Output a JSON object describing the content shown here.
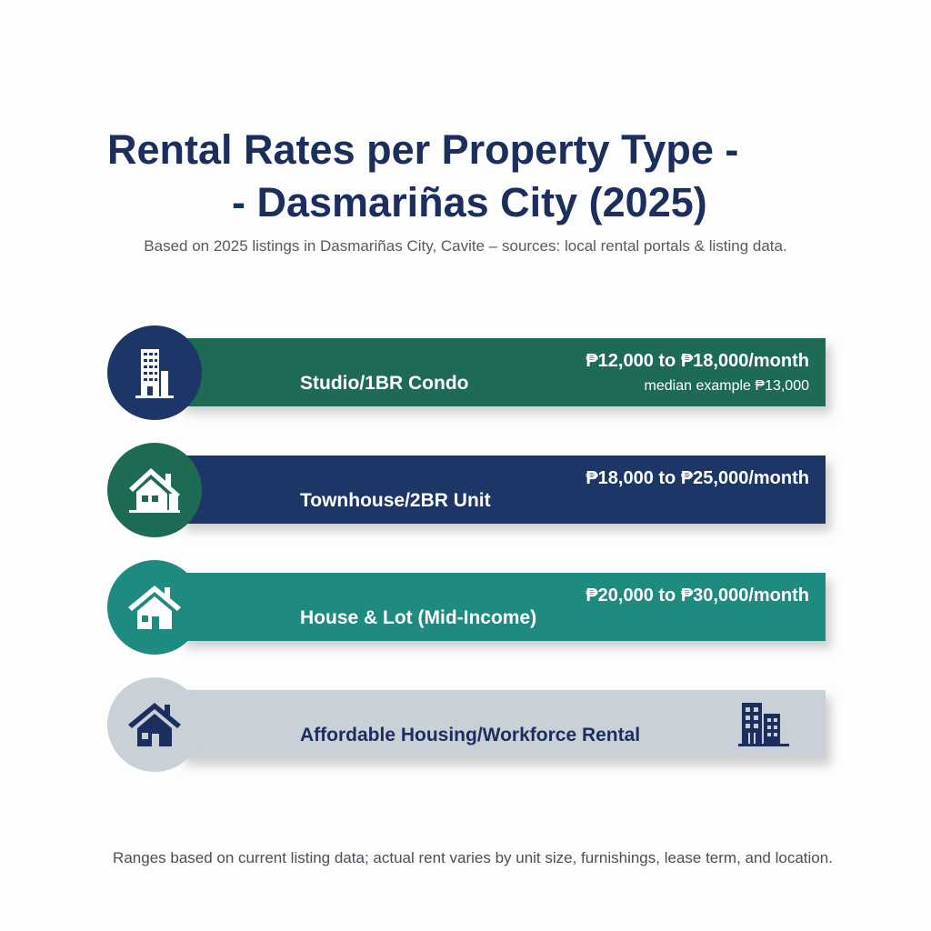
{
  "title": {
    "line1": "Rental Rates per Property Type -",
    "line2": "- Dasmariñas City (2025)"
  },
  "subtitle": "Based on 2025 listings in Dasmariñas City, Cavite – sources: local rental portals & listing data.",
  "rows": [
    {
      "label": "Studio/1BR Condo",
      "price": "₱12,000 to ₱18,000/month",
      "note": "median example ₱13,000",
      "icon": "building-icon",
      "bar_color": "#1e6b55",
      "circle_color": "#1c3668"
    },
    {
      "label": "Townhouse/2BR Unit",
      "price": "₱18,000 to ₱25,000/month",
      "icon": "house-icon",
      "bar_color": "#1c3668",
      "circle_color": "#1e6b55"
    },
    {
      "label": "House & Lot (Mid-Income)",
      "price": "₱20,000 to ₱30,000/month",
      "icon": "house-icon",
      "bar_color": "#1f8a80",
      "circle_color": "#1f8a80"
    },
    {
      "label": "Affordable Housing/Workforce Rental",
      "icon": "house-icon",
      "right_icon": "apartment-building-icon",
      "bar_color": "#c9d0d7",
      "circle_color": "#c9d0d7"
    }
  ],
  "footer": "Ranges based on current listing data; actual rent varies by unit size, furnishings, lease term, and location."
}
